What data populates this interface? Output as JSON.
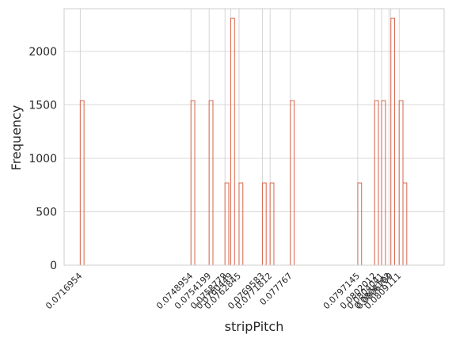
{
  "chart_data": {
    "type": "histogram",
    "xlabel": "stripPitch",
    "ylabel": "Frequency",
    "ylim": [
      0,
      2400
    ],
    "yticks": [
      0,
      500,
      1000,
      1500,
      2000
    ],
    "xlim": [
      0.07123,
      0.08221
    ],
    "xticks": [
      {
        "value": 0.0716954,
        "label": "0.0716954"
      },
      {
        "value": 0.0748954,
        "label": "0.0748954"
      },
      {
        "value": 0.0754199,
        "label": "0.0754199"
      },
      {
        "value": 0.0758779,
        "label": "0.0758779"
      },
      {
        "value": 0.0760449,
        "label": "0.0760449"
      },
      {
        "value": 0.0762845,
        "label": "0.0762845"
      },
      {
        "value": 0.0769583,
        "label": "0.0769583"
      },
      {
        "value": 0.0771812,
        "label": "0.0771812"
      },
      {
        "value": 0.077767,
        "label": "0.077767"
      },
      {
        "value": 0.0797145,
        "label": "0.0797145"
      },
      {
        "value": 0.0802012,
        "label": "0.0802012"
      },
      {
        "value": 0.0804041,
        "label": "0.0804041"
      },
      {
        "value": 0.0806162,
        "label": "0.0806162"
      },
      {
        "value": 0.0806709,
        "label": "0.0806709"
      },
      {
        "value": 0.0809111,
        "label": "0.0809111"
      }
    ],
    "bin_width": 0.0001098,
    "bars": [
      {
        "x": 0.0716954,
        "count": 1540
      },
      {
        "x": 0.0748954,
        "count": 1540
      },
      {
        "x": 0.0754199,
        "count": 1540
      },
      {
        "x": 0.0758779,
        "count": 770
      },
      {
        "x": 0.0760449,
        "count": 2310
      },
      {
        "x": 0.0762845,
        "count": 770
      },
      {
        "x": 0.0769583,
        "count": 770
      },
      {
        "x": 0.0771812,
        "count": 770
      },
      {
        "x": 0.077767,
        "count": 1540
      },
      {
        "x": 0.0797145,
        "count": 770
      },
      {
        "x": 0.0802012,
        "count": 1540
      },
      {
        "x": 0.0804041,
        "count": 1540
      },
      {
        "x": 0.0806709,
        "count": 2310
      },
      {
        "x": 0.0809111,
        "count": 1540
      },
      {
        "x": 0.0810209,
        "count": 770
      }
    ],
    "grid": true,
    "colors": {
      "bar_edge": "#d9654b",
      "grid": "#cccccc",
      "axes": "#cccccc"
    }
  }
}
